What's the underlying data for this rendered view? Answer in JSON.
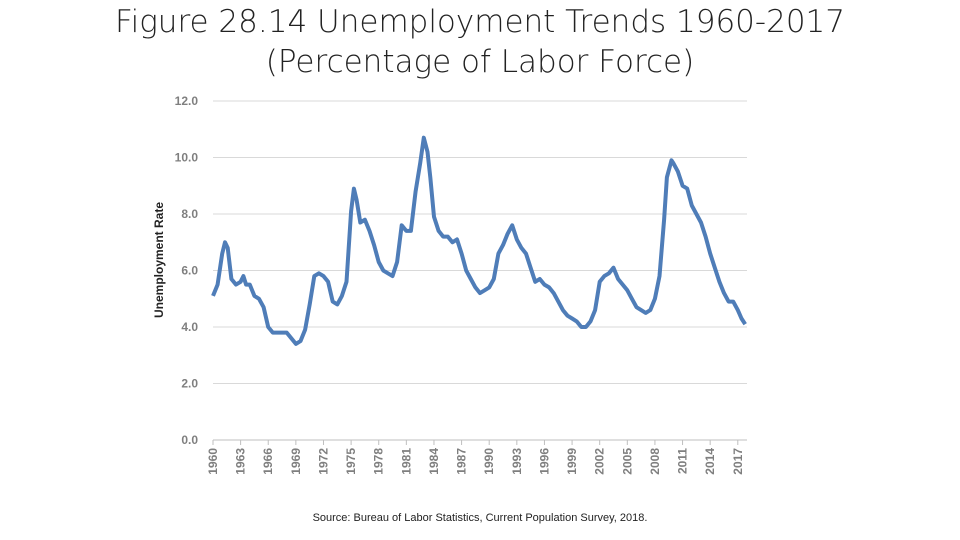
{
  "chart_data": {
    "type": "line",
    "title": "Figure 28.14 Unemployment Trends 1960-2017",
    "subtitle": "(Percentage of Labor Force)",
    "y_label": "Unemployment Rate",
    "source": "Source: Bureau of Labor Statistics, Current Population Survey, 2018.",
    "grid": true,
    "xlim": [
      1960,
      2018
    ],
    "xticks": [
      1960,
      1963,
      1966,
      1969,
      1972,
      1975,
      1978,
      1981,
      1984,
      1987,
      1990,
      1993,
      1996,
      1999,
      2002,
      2005,
      2008,
      2011,
      2014,
      2017
    ],
    "ylim": [
      0,
      12
    ],
    "yticks": [
      {
        "value": 0,
        "label": "0.0"
      },
      {
        "value": 2,
        "label": "2.0"
      },
      {
        "value": 4,
        "label": "4.0"
      },
      {
        "value": 6,
        "label": "6.0"
      },
      {
        "value": 8,
        "label": "8.0"
      },
      {
        "value": 10,
        "label": "10.0"
      },
      {
        "value": 12,
        "label": "12.0"
      }
    ],
    "x": [
      1960.0,
      1960.5,
      1961.0,
      1961.3,
      1961.6,
      1962.0,
      1962.5,
      1963.0,
      1963.3,
      1963.6,
      1964.0,
      1964.5,
      1965.0,
      1965.5,
      1966.0,
      1966.5,
      1967.0,
      1967.5,
      1968.0,
      1968.5,
      1969.0,
      1969.5,
      1970.0,
      1970.5,
      1971.0,
      1971.5,
      1972.0,
      1972.5,
      1973.0,
      1973.5,
      1974.0,
      1974.5,
      1975.0,
      1975.3,
      1975.6,
      1976.0,
      1976.5,
      1977.0,
      1977.5,
      1978.0,
      1978.5,
      1979.0,
      1979.5,
      1980.0,
      1980.5,
      1981.0,
      1981.5,
      1982.0,
      1982.5,
      1982.9,
      1983.3,
      1983.6,
      1984.0,
      1984.5,
      1985.0,
      1985.5,
      1986.0,
      1986.5,
      1987.0,
      1987.5,
      1988.0,
      1988.5,
      1989.0,
      1989.5,
      1990.0,
      1990.5,
      1991.0,
      1991.5,
      1992.0,
      1992.5,
      1993.0,
      1993.5,
      1994.0,
      1994.5,
      1995.0,
      1995.5,
      1996.0,
      1996.5,
      1997.0,
      1997.5,
      1998.0,
      1998.5,
      1999.0,
      1999.5,
      2000.0,
      2000.5,
      2001.0,
      2001.5,
      2002.0,
      2002.5,
      2003.0,
      2003.5,
      2004.0,
      2004.5,
      2005.0,
      2005.5,
      2006.0,
      2006.5,
      2007.0,
      2007.5,
      2008.0,
      2008.5,
      2009.0,
      2009.3,
      2009.8,
      2010.0,
      2010.5,
      2011.0,
      2011.5,
      2012.0,
      2012.5,
      2013.0,
      2013.5,
      2014.0,
      2014.5,
      2015.0,
      2015.5,
      2016.0,
      2016.5,
      2017.0,
      2017.4,
      2017.8
    ],
    "series": [
      {
        "name": "Unemployment Rate",
        "color": "#4f7db8",
        "values": [
          5.1,
          5.5,
          6.6,
          7.0,
          6.8,
          5.7,
          5.5,
          5.6,
          5.8,
          5.5,
          5.5,
          5.1,
          5.0,
          4.7,
          4.0,
          3.8,
          3.8,
          3.8,
          3.8,
          3.6,
          3.4,
          3.5,
          3.9,
          4.8,
          5.8,
          5.9,
          5.8,
          5.6,
          4.9,
          4.8,
          5.1,
          5.6,
          8.1,
          8.9,
          8.5,
          7.7,
          7.8,
          7.4,
          6.9,
          6.3,
          6.0,
          5.9,
          5.8,
          6.3,
          7.6,
          7.4,
          7.4,
          8.8,
          9.8,
          10.7,
          10.2,
          9.3,
          7.9,
          7.4,
          7.2,
          7.2,
          7.0,
          7.1,
          6.6,
          6.0,
          5.7,
          5.4,
          5.2,
          5.3,
          5.4,
          5.7,
          6.6,
          6.9,
          7.3,
          7.6,
          7.1,
          6.8,
          6.6,
          6.1,
          5.6,
          5.7,
          5.5,
          5.4,
          5.2,
          4.9,
          4.6,
          4.4,
          4.3,
          4.2,
          4.0,
          4.0,
          4.2,
          4.6,
          5.6,
          5.8,
          5.9,
          6.1,
          5.7,
          5.5,
          5.3,
          5.0,
          4.7,
          4.6,
          4.5,
          4.6,
          5.0,
          5.8,
          7.8,
          9.3,
          9.9,
          9.8,
          9.5,
          9.0,
          8.9,
          8.3,
          8.0,
          7.7,
          7.2,
          6.6,
          6.1,
          5.6,
          5.2,
          4.9,
          4.9,
          4.6,
          4.3,
          4.1
        ]
      }
    ]
  }
}
